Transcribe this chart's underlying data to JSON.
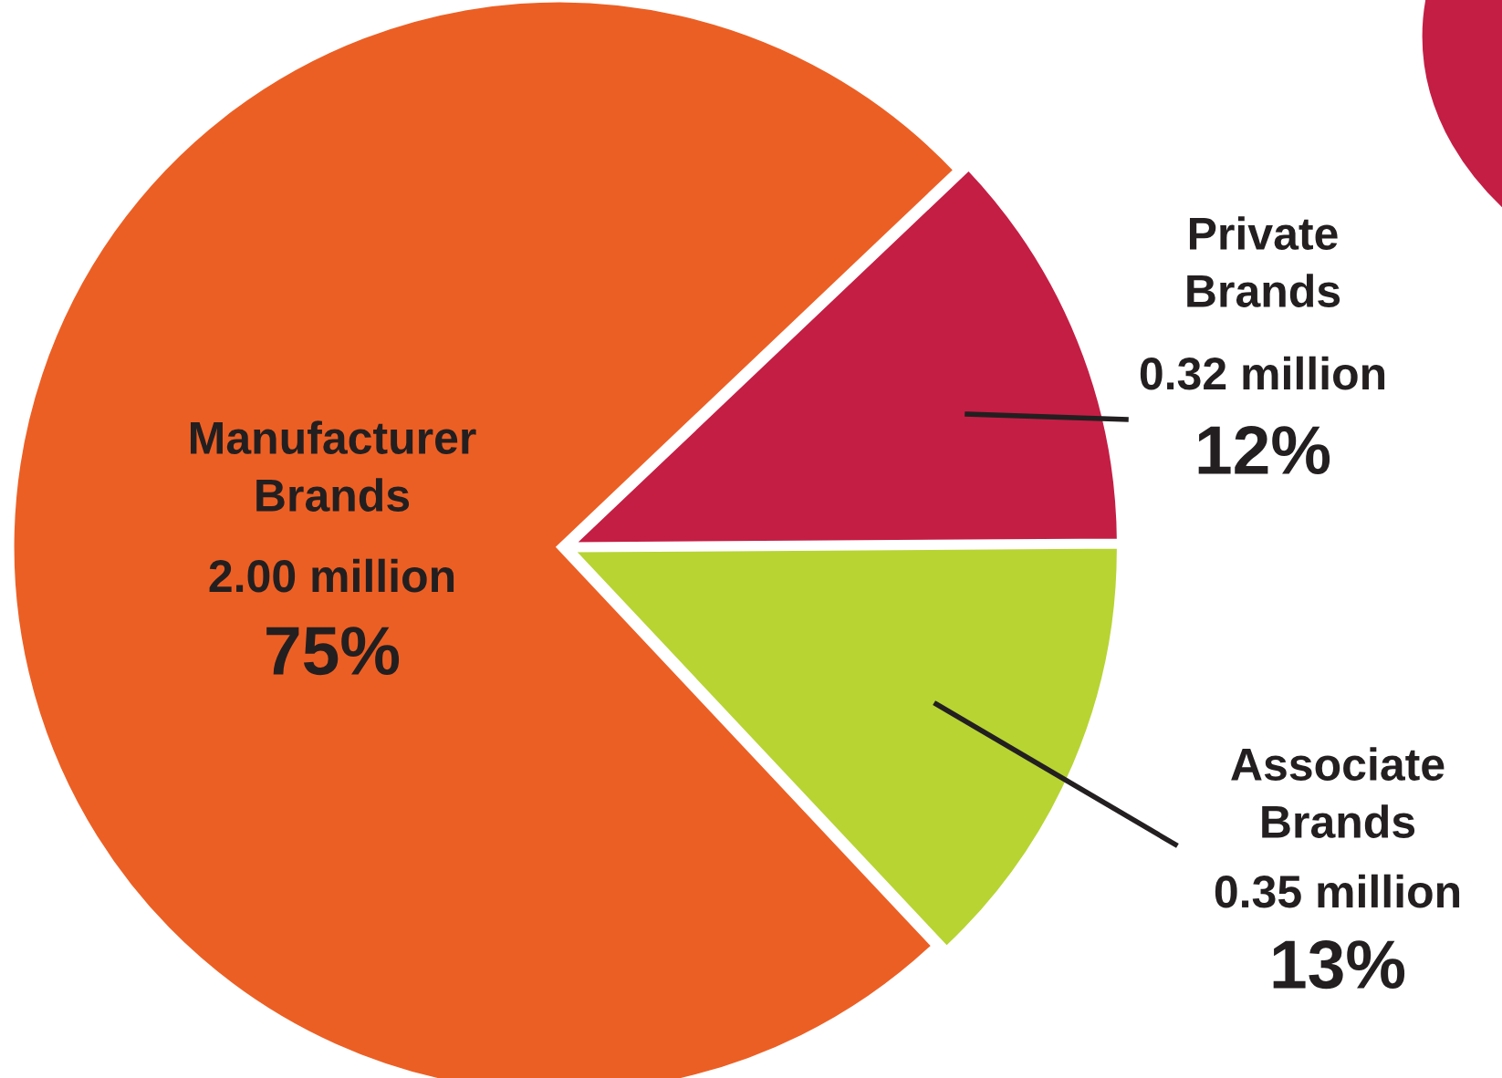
{
  "chart_data": {
    "type": "pie",
    "categories": [
      "Manufacturer\nBrands",
      "Private\nBrands",
      "Associate\nBrands"
    ],
    "values": [
      2.0,
      0.32,
      0.35
    ],
    "colors": [
      "#ec5f24",
      "#c41e45",
      "#b7d433"
    ],
    "value_labels": [
      "2.00 million",
      "0.32 million",
      "0.35 million"
    ],
    "annotations": [
      "75%",
      "12%",
      "13%"
    ]
  }
}
